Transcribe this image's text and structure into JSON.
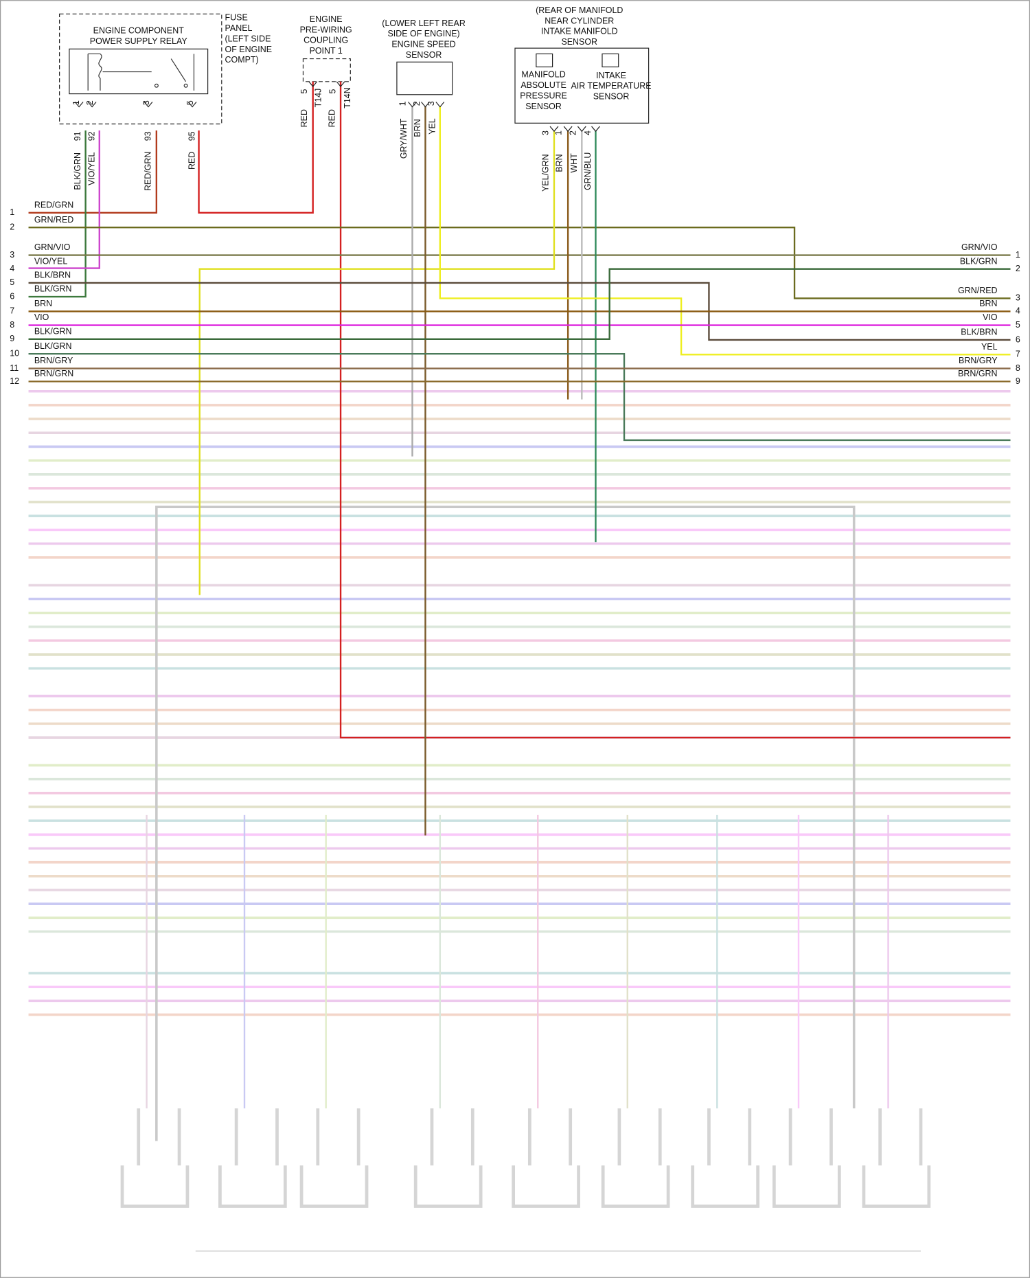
{
  "relay": {
    "title_lines": [
      "ENGINE COMPONENT",
      "POWER SUPPLY RELAY"
    ],
    "pins": [
      "1",
      "2",
      "3",
      "5"
    ],
    "cavities": [
      "91",
      "92",
      "93",
      "95"
    ],
    "wires": [
      "BLK/GRN",
      "VIO/YEL",
      "RED/GRN",
      "RED"
    ]
  },
  "fuse_panel": {
    "label_lines": [
      "FUSE",
      "PANEL",
      "(LEFT SIDE",
      "OF ENGINE",
      "COMPT)"
    ]
  },
  "coupling": {
    "title_lines": [
      "ENGINE",
      "PRE-WIRING",
      "COUPLING",
      "POINT 1"
    ],
    "pins": [
      "5",
      "5"
    ],
    "terminals": [
      "T14J",
      "T14N"
    ],
    "wires": [
      "RED",
      "RED"
    ]
  },
  "speed_sensor": {
    "title_lines": [
      "(LOWER LEFT REAR",
      "SIDE OF ENGINE)",
      "ENGINE SPEED",
      "SENSOR"
    ],
    "pins": [
      "1",
      "2",
      "3"
    ],
    "wires": [
      "GRY/WHT",
      "BRN",
      "YEL"
    ]
  },
  "manifold_sensor": {
    "title_lines": [
      "(REAR OF MANIFOLD",
      "NEAR CYLINDER",
      "INTAKE MANIFOLD",
      "SENSOR"
    ],
    "map_lines": [
      "MANIFOLD",
      "ABSOLUTE",
      "PRESSURE",
      "SENSOR"
    ],
    "iat_lines": [
      "INTAKE",
      "AIR TEMPERATURE",
      "SENSOR"
    ],
    "pins": [
      "3",
      "1",
      "2",
      "4"
    ],
    "wires": [
      "YEL/GRN",
      "BRN",
      "WHT",
      "GRN/BLU"
    ]
  },
  "left_rows": [
    {
      "number": "1",
      "wire": "RED/GRN"
    },
    {
      "number": "2",
      "wire": "GRN/RED"
    },
    {
      "number": "3",
      "wire": "GRN/VIO"
    },
    {
      "number": "4",
      "wire": "VIO/YEL"
    },
    {
      "number": "5",
      "wire": "BLK/BRN"
    },
    {
      "number": "6",
      "wire": "BLK/GRN"
    },
    {
      "number": "7",
      "wire": "BRN"
    },
    {
      "number": "8",
      "wire": "VIO"
    },
    {
      "number": "9",
      "wire": "BLK/GRN"
    },
    {
      "number": "10",
      "wire": "BLK/GRN"
    },
    {
      "number": "11",
      "wire": "BRN/GRY"
    },
    {
      "number": "12",
      "wire": "BRN/GRN"
    }
  ],
  "right_rows": [
    {
      "number": "1",
      "wire": "GRN/VIO"
    },
    {
      "number": "2",
      "wire": "BLK/GRN"
    },
    {
      "number": "3",
      "wire": "GRN/RED"
    },
    {
      "number": "4",
      "wire": "BRN"
    },
    {
      "number": "5",
      "wire": "VIO"
    },
    {
      "number": "6",
      "wire": "BLK/BRN"
    },
    {
      "number": "7",
      "wire": "YEL"
    },
    {
      "number": "8",
      "wire": "BRN/GRY"
    },
    {
      "number": "9",
      "wire": "BRN/GRN"
    }
  ]
}
